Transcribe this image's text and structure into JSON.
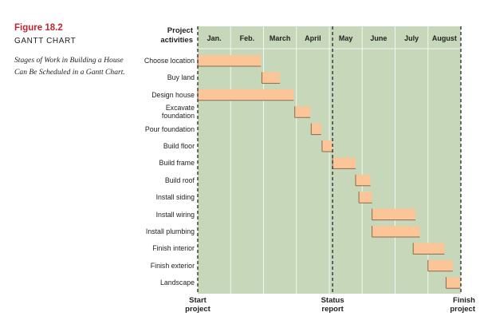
{
  "figure": {
    "number": "Figure 18.2",
    "title": "GANTT CHART",
    "caption": "Stages of Work in Building a House Can Be Scheduled in a Gantt Chart."
  },
  "colors": {
    "background": "#c7d7b9",
    "bar_fill": "#fbc597",
    "bar_edge": "#8a6a4e",
    "dashed_line": "#333333",
    "figure_number": "#c0262e"
  },
  "chart_data": {
    "type": "gantt",
    "header_label": "Project activities",
    "months": [
      "Jan.",
      "Feb.",
      "March",
      "April",
      "May",
      "June",
      "July",
      "August"
    ],
    "x_unit": "months from start of January",
    "xlim": [
      0,
      8
    ],
    "tasks": [
      {
        "name": "Choose location",
        "start": 0.0,
        "end": 1.92
      },
      {
        "name": "Buy land",
        "start": 1.95,
        "end": 2.5
      },
      {
        "name": "Design house",
        "start": 0.0,
        "end": 2.92
      },
      {
        "name": "Excavate foundation",
        "start": 2.95,
        "end": 3.42
      },
      {
        "name": "Pour foundation",
        "start": 3.45,
        "end": 3.75
      },
      {
        "name": "Build floor",
        "start": 3.78,
        "end": 4.1
      },
      {
        "name": "Build frame",
        "start": 4.1,
        "end": 4.8
      },
      {
        "name": "Build roof",
        "start": 4.8,
        "end": 5.25
      },
      {
        "name": "Install siding",
        "start": 4.9,
        "end": 5.3
      },
      {
        "name": "Install wiring",
        "start": 5.3,
        "end": 6.62
      },
      {
        "name": "Install plumbing",
        "start": 5.3,
        "end": 6.75
      },
      {
        "name": "Finish interior",
        "start": 6.55,
        "end": 7.5
      },
      {
        "name": "Finish exterior",
        "start": 7.0,
        "end": 7.75
      },
      {
        "name": "Landscape",
        "start": 7.55,
        "end": 7.98
      }
    ],
    "markers": [
      {
        "label": "Start project",
        "x": 0
      },
      {
        "label": "Status report",
        "x": 4.1
      },
      {
        "label": "Finish project",
        "x": 8
      }
    ]
  }
}
